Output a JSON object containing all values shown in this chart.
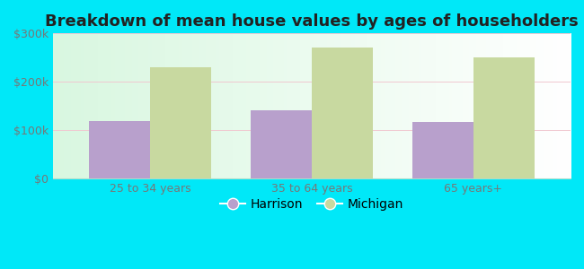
{
  "title": "Breakdown of mean house values by ages of householders",
  "categories": [
    "25 to 34 years",
    "35 to 64 years",
    "65 years+"
  ],
  "harrison_values": [
    118000,
    140000,
    117000
  ],
  "michigan_values": [
    230000,
    270000,
    250000
  ],
  "harrison_color": "#b8a0cc",
  "michigan_color": "#c8d9a0",
  "background_outer": "#00e8f8",
  "ylim": [
    0,
    300000
  ],
  "yticks": [
    0,
    100000,
    200000,
    300000
  ],
  "ytick_labels": [
    "$0",
    "$100k",
    "$200k",
    "$300k"
  ],
  "bar_width": 0.38,
  "legend_labels": [
    "Harrison",
    "Michigan"
  ],
  "title_fontsize": 13,
  "tick_fontsize": 9,
  "legend_fontsize": 10,
  "grid_color": "#e0eed8",
  "spine_color": "#aaddcc"
}
